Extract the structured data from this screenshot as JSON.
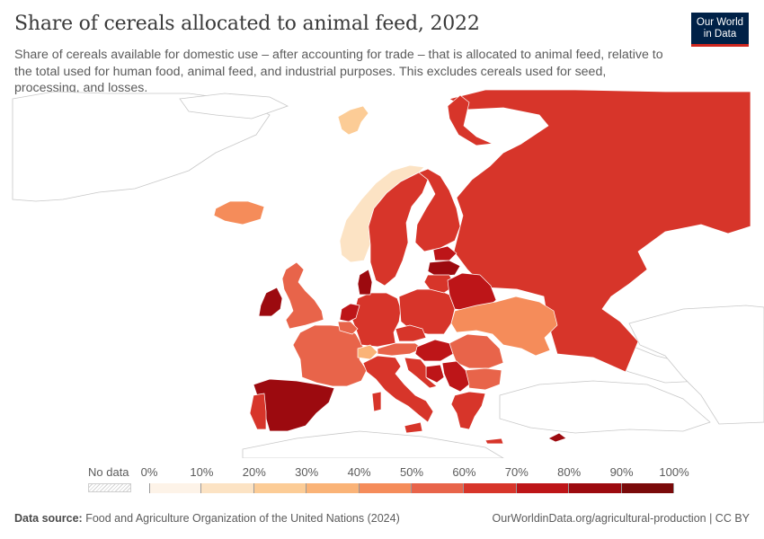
{
  "header": {
    "title": "Share of cereals allocated to animal feed, 2022",
    "subtitle": "Share of cereals available for domestic use – after accounting for trade – that is allocated to animal feed, relative to the total used for human food, animal feed, and industrial purposes. This excludes cereals used for seed, processing, and losses.",
    "logo_line1": "Our World",
    "logo_line2": "in Data"
  },
  "colors": {
    "no_data": "#ffffff",
    "border": "#ffffff",
    "outline": "#c8c8c8",
    "bins": [
      "#fdf3e8",
      "#fce3c4",
      "#fccc96",
      "#fab377",
      "#f58c5a",
      "#e8644a",
      "#d7352a",
      "#bd1518",
      "#9c0a0f",
      "#7a0a0a"
    ]
  },
  "legend": {
    "no_data_label": "No data",
    "ticks": [
      "0%",
      "10%",
      "20%",
      "30%",
      "40%",
      "50%",
      "60%",
      "70%",
      "80%",
      "90%",
      "100%"
    ]
  },
  "regions": [
    {
      "name": "Russia",
      "value": 67
    },
    {
      "name": "Norway",
      "value": 18
    },
    {
      "name": "Sweden",
      "value": 65
    },
    {
      "name": "Finland",
      "value": 66
    },
    {
      "name": "Iceland",
      "value": 43
    },
    {
      "name": "Svalbard",
      "value": 22
    },
    {
      "name": "United Kingdom",
      "value": 55
    },
    {
      "name": "Ireland",
      "value": 88
    },
    {
      "name": "France",
      "value": 53
    },
    {
      "name": "Spain",
      "value": 86
    },
    {
      "name": "Portugal",
      "value": 62
    },
    {
      "name": "Germany",
      "value": 66
    },
    {
      "name": "Poland",
      "value": 66
    },
    {
      "name": "Netherlands",
      "value": 78
    },
    {
      "name": "Belgium",
      "value": 58
    },
    {
      "name": "Denmark",
      "value": 86
    },
    {
      "name": "Estonia",
      "value": 72
    },
    {
      "name": "Latvia",
      "value": 80
    },
    {
      "name": "Lithuania",
      "value": 66
    },
    {
      "name": "Belarus",
      "value": 76
    },
    {
      "name": "Ukraine",
      "value": 47
    },
    {
      "name": "Czechia",
      "value": 65
    },
    {
      "name": "Austria",
      "value": 58
    },
    {
      "name": "Switzerland",
      "value": 33
    },
    {
      "name": "Italy",
      "value": 61
    },
    {
      "name": "Hungary",
      "value": 76
    },
    {
      "name": "Romania",
      "value": 55
    },
    {
      "name": "Bulgaria",
      "value": 54
    },
    {
      "name": "Serbia",
      "value": 74
    },
    {
      "name": "Bosnia and Herzegovina",
      "value": 77
    },
    {
      "name": "Croatia",
      "value": 68
    },
    {
      "name": "Greece",
      "value": 65
    },
    {
      "name": "Cyprus",
      "value": 80
    }
  ],
  "footer": {
    "source_label": "Data source:",
    "source_text": "Food and Agriculture Organization of the United Nations (2024)",
    "url": "OurWorldinData.org/agricultural-production | CC BY"
  }
}
